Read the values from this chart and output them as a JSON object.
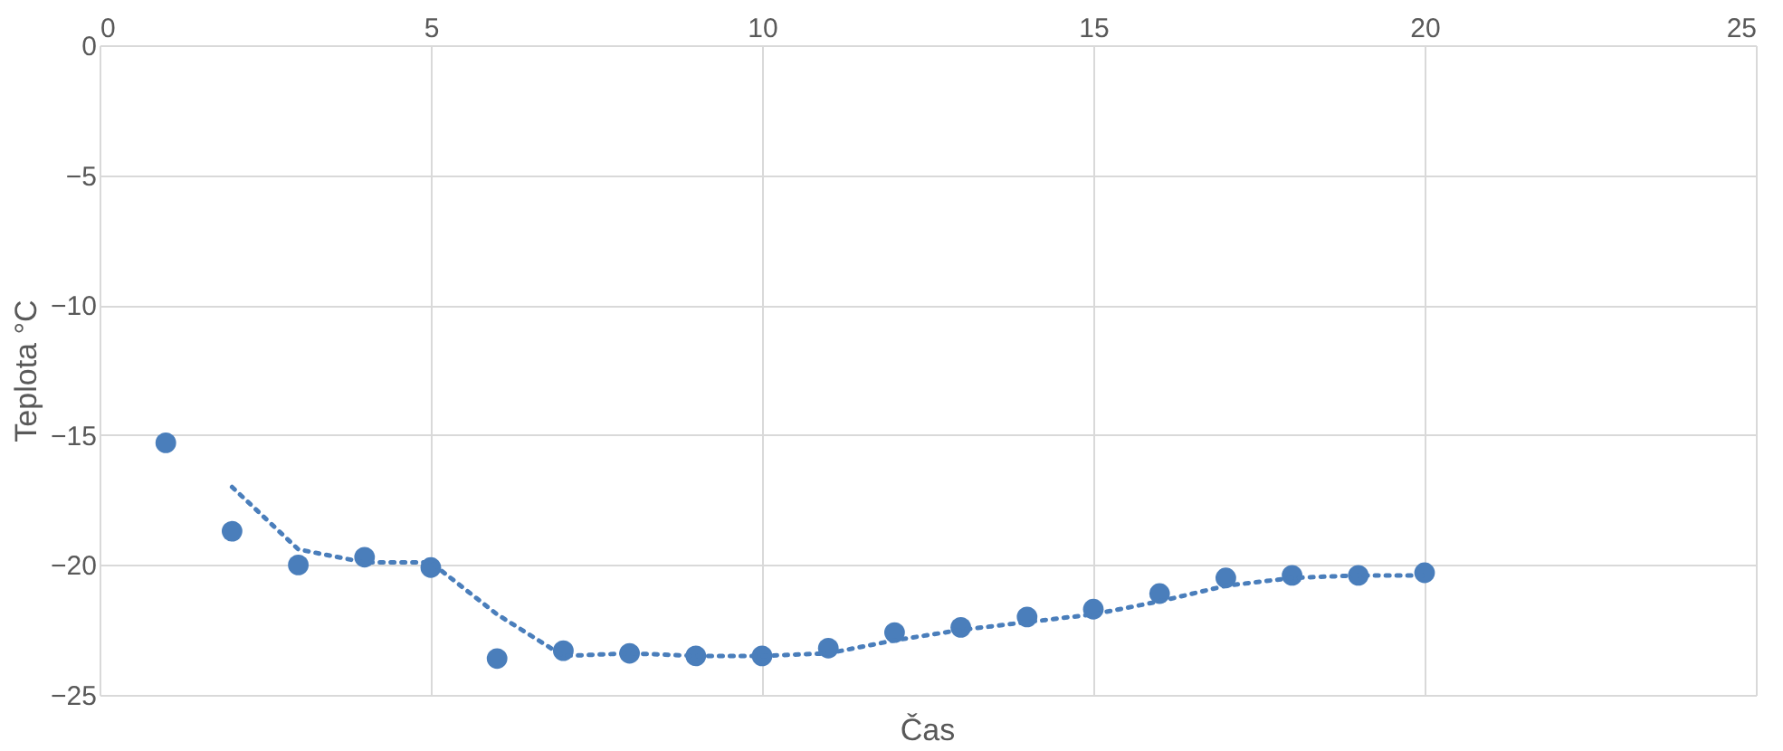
{
  "chart_data": {
    "type": "scatter",
    "xlabel": "Čas",
    "ylabel": "Teplota °C",
    "xlim": [
      0,
      25
    ],
    "xticks": [
      0,
      5,
      10,
      15,
      20,
      25
    ],
    "ylim": [
      -25,
      0
    ],
    "yticks": [
      0,
      -5,
      -10,
      -15,
      -20,
      -25
    ],
    "grid": true,
    "x": [
      1,
      2,
      3,
      4,
      5,
      6,
      7,
      8,
      9,
      10,
      11,
      12,
      13,
      14,
      15,
      16,
      17,
      18,
      19,
      20
    ],
    "series": [
      {
        "type": "scatter",
        "marker": "circle",
        "color": "#4a7ebb",
        "values": [
          -15.3,
          -18.7,
          -20.0,
          -19.7,
          -20.1,
          -23.6,
          -23.3,
          -23.4,
          -23.5,
          -23.5,
          -23.2,
          -22.6,
          -22.4,
          -22.0,
          -21.7,
          -21.1,
          -20.5,
          -20.4,
          -20.4,
          -20.3
        ]
      },
      {
        "type": "line",
        "line_style": "dotted",
        "color": "#4a7ebb",
        "x": [
          2,
          3,
          4,
          5,
          6,
          7,
          8,
          9,
          10,
          11,
          12,
          13,
          14,
          15,
          16,
          17,
          18,
          19,
          20
        ],
        "values": [
          -17.0,
          -19.4,
          -19.9,
          -19.9,
          -21.9,
          -23.5,
          -23.4,
          -23.5,
          -23.5,
          -23.4,
          -22.9,
          -22.5,
          -22.2,
          -21.9,
          -21.4,
          -20.8,
          -20.5,
          -20.4,
          -20.4
        ]
      }
    ]
  }
}
